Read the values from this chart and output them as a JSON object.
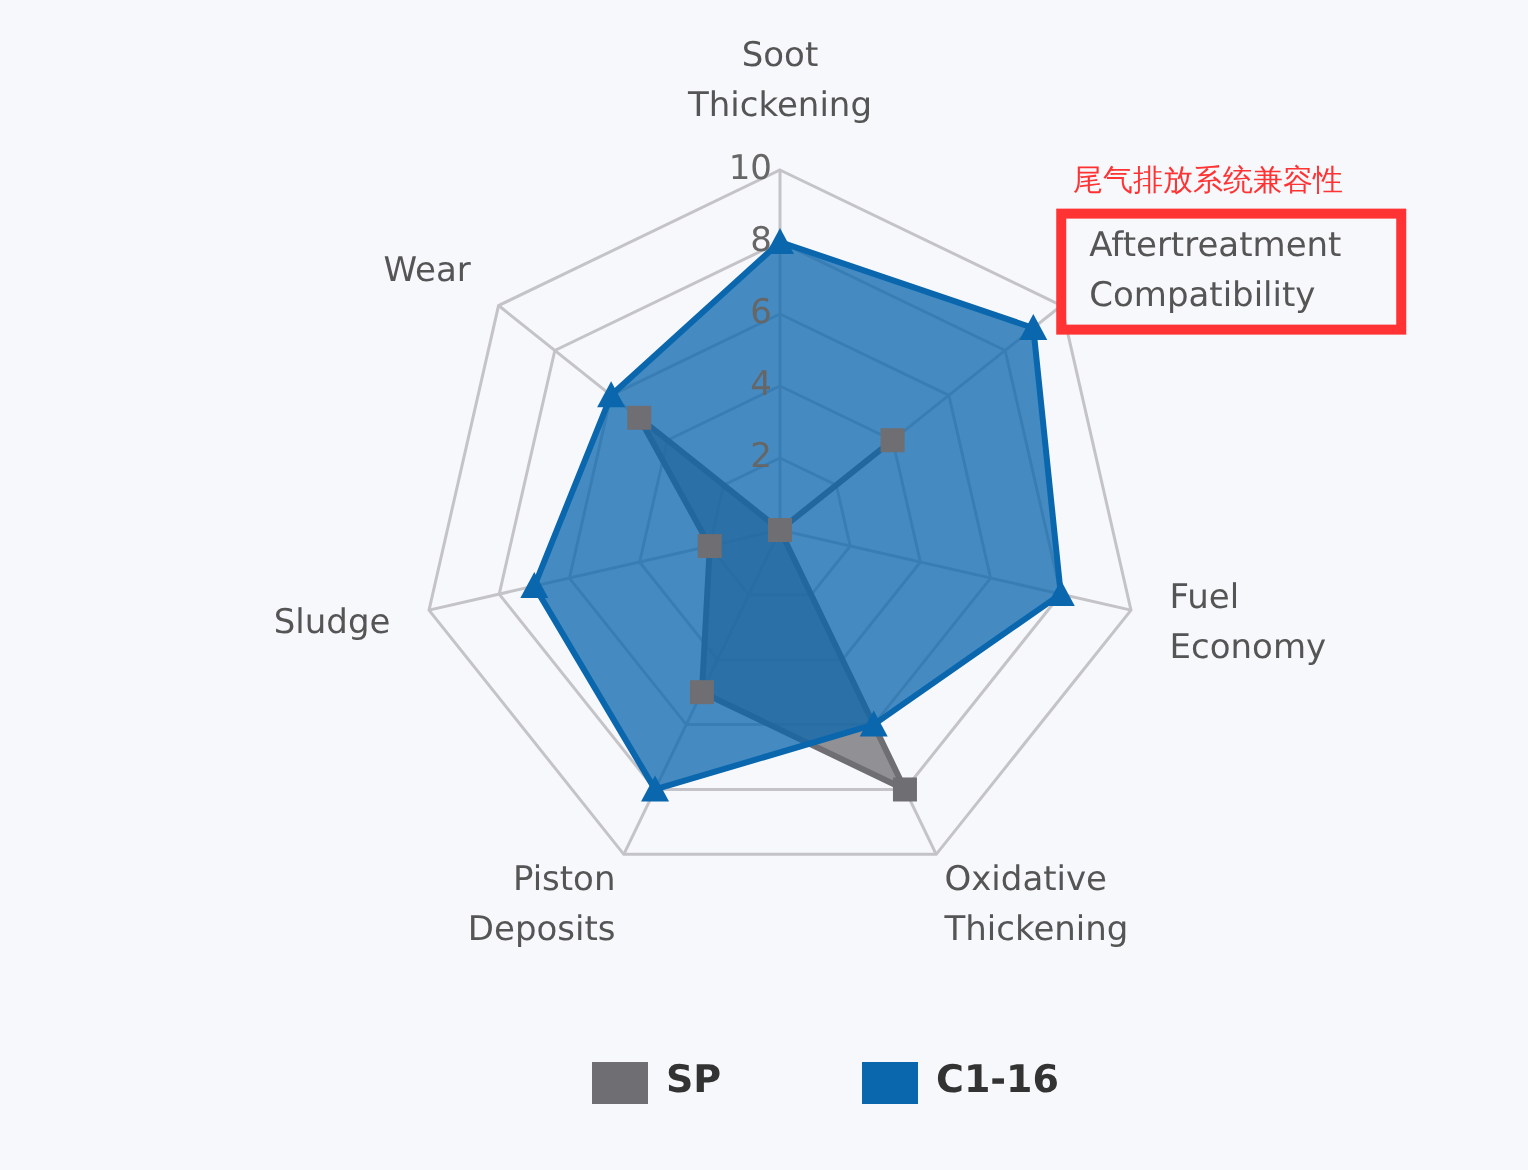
{
  "chart_data": {
    "type": "radar",
    "categories": [
      "Soot Thickening",
      "Aftertreatment Compatibility",
      "Fuel Economy",
      "Oxidative Thickening",
      "Piston Deposits",
      "Sludge",
      "Wear"
    ],
    "series": [
      {
        "name": "SP",
        "color": "#6e6e73",
        "marker": "square",
        "values": [
          0,
          4,
          0,
          8,
          5,
          2,
          5
        ]
      },
      {
        "name": "C1-16",
        "color": "#0a67ad",
        "marker": "triangle",
        "values": [
          8,
          9,
          8,
          6,
          8,
          7,
          6
        ]
      }
    ],
    "ylim": [
      0,
      10
    ],
    "yticks": [
      2,
      4,
      6,
      8,
      10
    ],
    "legend": "bottom",
    "annotations": [
      {
        "text": "尾气排放系统兼容性",
        "x": "Aftertreatment Compatibility"
      }
    ]
  }
}
